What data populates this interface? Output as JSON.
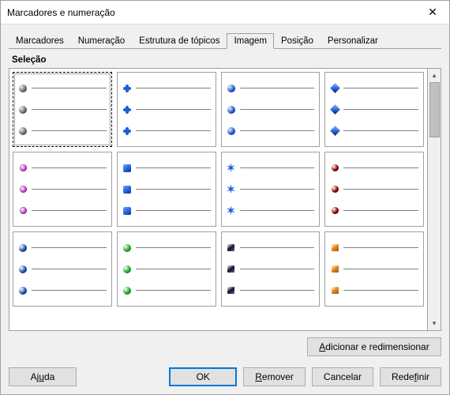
{
  "window": {
    "title": "Marcadores e numeração",
    "close_glyph": "✕"
  },
  "tabs": {
    "items": [
      {
        "label": "Marcadores",
        "active": false
      },
      {
        "label": "Numeração",
        "active": false
      },
      {
        "label": "Estrutura de tópicos",
        "active": false
      },
      {
        "label": "Imagem",
        "active": true
      },
      {
        "label": "Posição",
        "active": false
      },
      {
        "label": "Personalizar",
        "active": false
      }
    ]
  },
  "section": {
    "label": "Seleção"
  },
  "bullet_options": [
    {
      "kind": "sphere",
      "color": "#707070",
      "selected": true
    },
    {
      "kind": "plus",
      "color": "#1e5fd8",
      "selected": false
    },
    {
      "kind": "sphere",
      "color": "#1e5fd8",
      "selected": false
    },
    {
      "kind": "diamond",
      "color": "#1e5fd8",
      "selected": false
    },
    {
      "kind": "gem",
      "color": "#c040c8",
      "selected": false
    },
    {
      "kind": "rsquare",
      "color": "#1e5fd8",
      "selected": false
    },
    {
      "kind": "star",
      "color": "#1e5fd8",
      "selected": false
    },
    {
      "kind": "orb",
      "color": "#8b0000",
      "selected": false
    },
    {
      "kind": "flat",
      "color": "#1040a0",
      "selected": false
    },
    {
      "kind": "flat",
      "color": "#10a010",
      "selected": false
    },
    {
      "kind": "square",
      "color": "#101030",
      "selected": false
    },
    {
      "kind": "square",
      "color": "#f08000",
      "selected": false
    }
  ],
  "lines_per_option": 3,
  "add_resize": {
    "prefix": "A",
    "rest": "dicionar e redimensionar"
  },
  "buttons": {
    "help": {
      "prefix": "Aj",
      "u": "u",
      "suffix": "da"
    },
    "ok": {
      "label": "OK"
    },
    "remove": {
      "prefix": "",
      "u": "R",
      "suffix": "emover"
    },
    "cancel": {
      "label": "Cancelar"
    },
    "reset": {
      "prefix": "Rede",
      "u": "f",
      "suffix": "inir"
    }
  },
  "colors": {
    "background": "#f0f0f0",
    "border": "#a0a0a0",
    "accent": "#0078d7"
  }
}
